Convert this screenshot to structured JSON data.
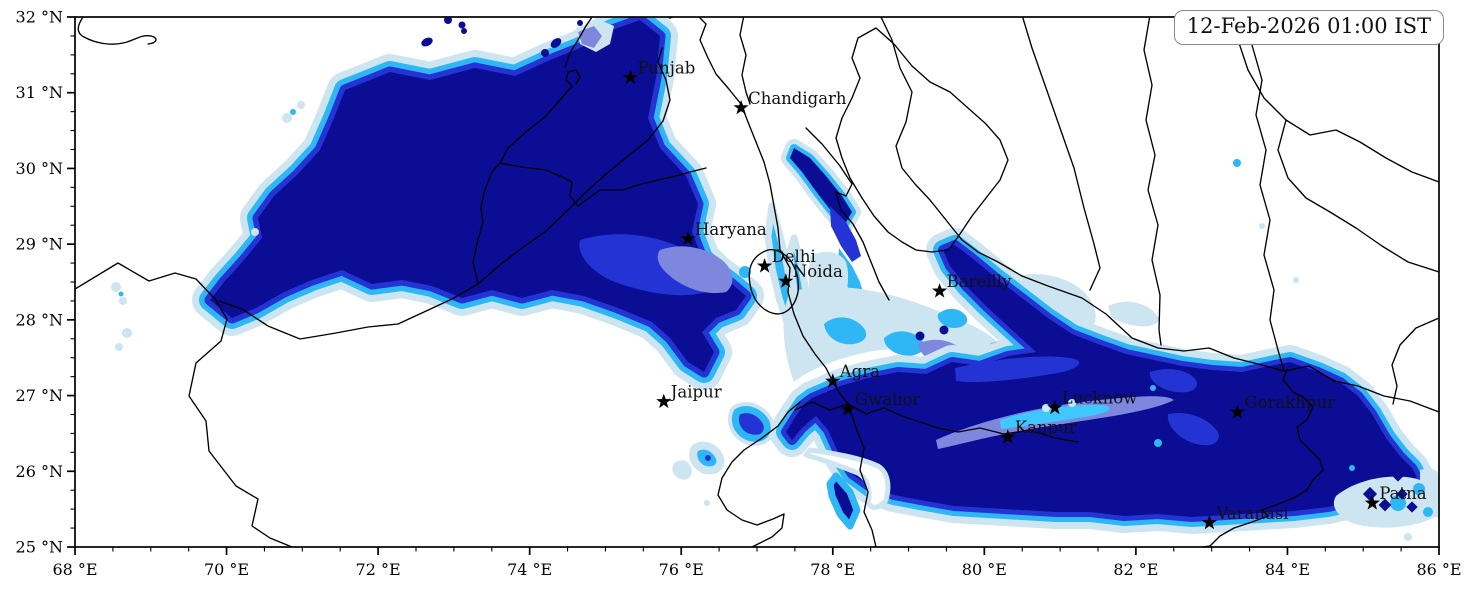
{
  "title_box": {
    "timestamp": "12-Feb-2026 01:00 IST"
  },
  "map": {
    "type": "filled-contour-geographic-map",
    "description_of_depiction": "Fog/low-cloud shaded regions over the Indo-Gangetic plain of north India with state boundaries, city star markers and a timestamp box",
    "x_axis": {
      "unit": "°E",
      "range": [
        68,
        86
      ],
      "minor_step": 0.5,
      "major_ticks": [
        {
          "v": 68,
          "label": "68 °E"
        },
        {
          "v": 70,
          "label": "70 °E"
        },
        {
          "v": 72,
          "label": "72 °E"
        },
        {
          "v": 74,
          "label": "74 °E"
        },
        {
          "v": 76,
          "label": "76 °E"
        },
        {
          "v": 78,
          "label": "78 °E"
        },
        {
          "v": 80,
          "label": "80 °E"
        },
        {
          "v": 82,
          "label": "82 °E"
        },
        {
          "v": 84,
          "label": "84 °E"
        },
        {
          "v": 86,
          "label": "86 °E"
        }
      ]
    },
    "y_axis": {
      "unit": "°N",
      "range": [
        25,
        32
      ],
      "minor_step": 0.25,
      "major_ticks": [
        {
          "v": 25,
          "label": "25 °N"
        },
        {
          "v": 26,
          "label": "26 °N"
        },
        {
          "v": 27,
          "label": "27 °N"
        },
        {
          "v": 28,
          "label": "28 °N"
        },
        {
          "v": 29,
          "label": "29 °N"
        },
        {
          "v": 30,
          "label": "30 °N"
        },
        {
          "v": 31,
          "label": "31 °N"
        },
        {
          "v": 32,
          "label": "32 °N"
        }
      ]
    },
    "cities": [
      {
        "name": "Punjab",
        "lon": 75.33,
        "lat": 31.2
      },
      {
        "name": "Chandigarh",
        "lon": 76.79,
        "lat": 30.8
      },
      {
        "name": "Haryana",
        "lon": 76.09,
        "lat": 29.07
      },
      {
        "name": "Delhi",
        "lon": 77.1,
        "lat": 28.71
      },
      {
        "name": "Noida",
        "lon": 77.38,
        "lat": 28.51
      },
      {
        "name": "Bareilly",
        "lon": 79.41,
        "lat": 28.38
      },
      {
        "name": "Jaipur",
        "lon": 75.77,
        "lat": 26.92
      },
      {
        "name": "Agra",
        "lon": 78.0,
        "lat": 27.19
      },
      {
        "name": "Gwalior",
        "lon": 78.2,
        "lat": 26.82
      },
      {
        "name": "Lucknow",
        "lon": 80.93,
        "lat": 26.84
      },
      {
        "name": "Kanpur",
        "lon": 80.31,
        "lat": 26.45
      },
      {
        "name": "Gorakhpur",
        "lon": 83.34,
        "lat": 26.78
      },
      {
        "name": "Varanasi",
        "lon": 82.97,
        "lat": 25.32
      },
      {
        "name": "Patna",
        "lon": 85.12,
        "lat": 25.58
      }
    ],
    "fog_regions": [
      {
        "name": "northwest-plume",
        "approx_extent": "70.3–77.6 °E, 27.4–31.9 °N",
        "core_shade": "navy"
      },
      {
        "name": "gangetic-band",
        "approx_extent": "78.5–86.0 °E, 25.2–27.6 °N",
        "core_shade": "navy"
      },
      {
        "name": "bareilly-finger",
        "approx_extent": "79.4–81.5 °E, 27.6–28.5 °N",
        "core_shade": "navy"
      },
      {
        "name": "patna-patches",
        "approx_extent": "84.5–86.0 °E, 25.3–26.0 °N",
        "core_shade": "mixed"
      }
    ],
    "palette": {
      "level1_lightest": "#cde4f1",
      "level2_skyblue": "#2fb6f5",
      "level3_periwinkle": "#7d87dd",
      "level4_blue": "#2433d3",
      "level5_navy": "#0b0e94",
      "highlight_cyan": "#3ec8ff",
      "highlight_pale": "#c9eefb",
      "white_gap": "#ffffff",
      "boundary": "#000000",
      "city_marker": "#000000",
      "axis_text": "#000000"
    }
  }
}
